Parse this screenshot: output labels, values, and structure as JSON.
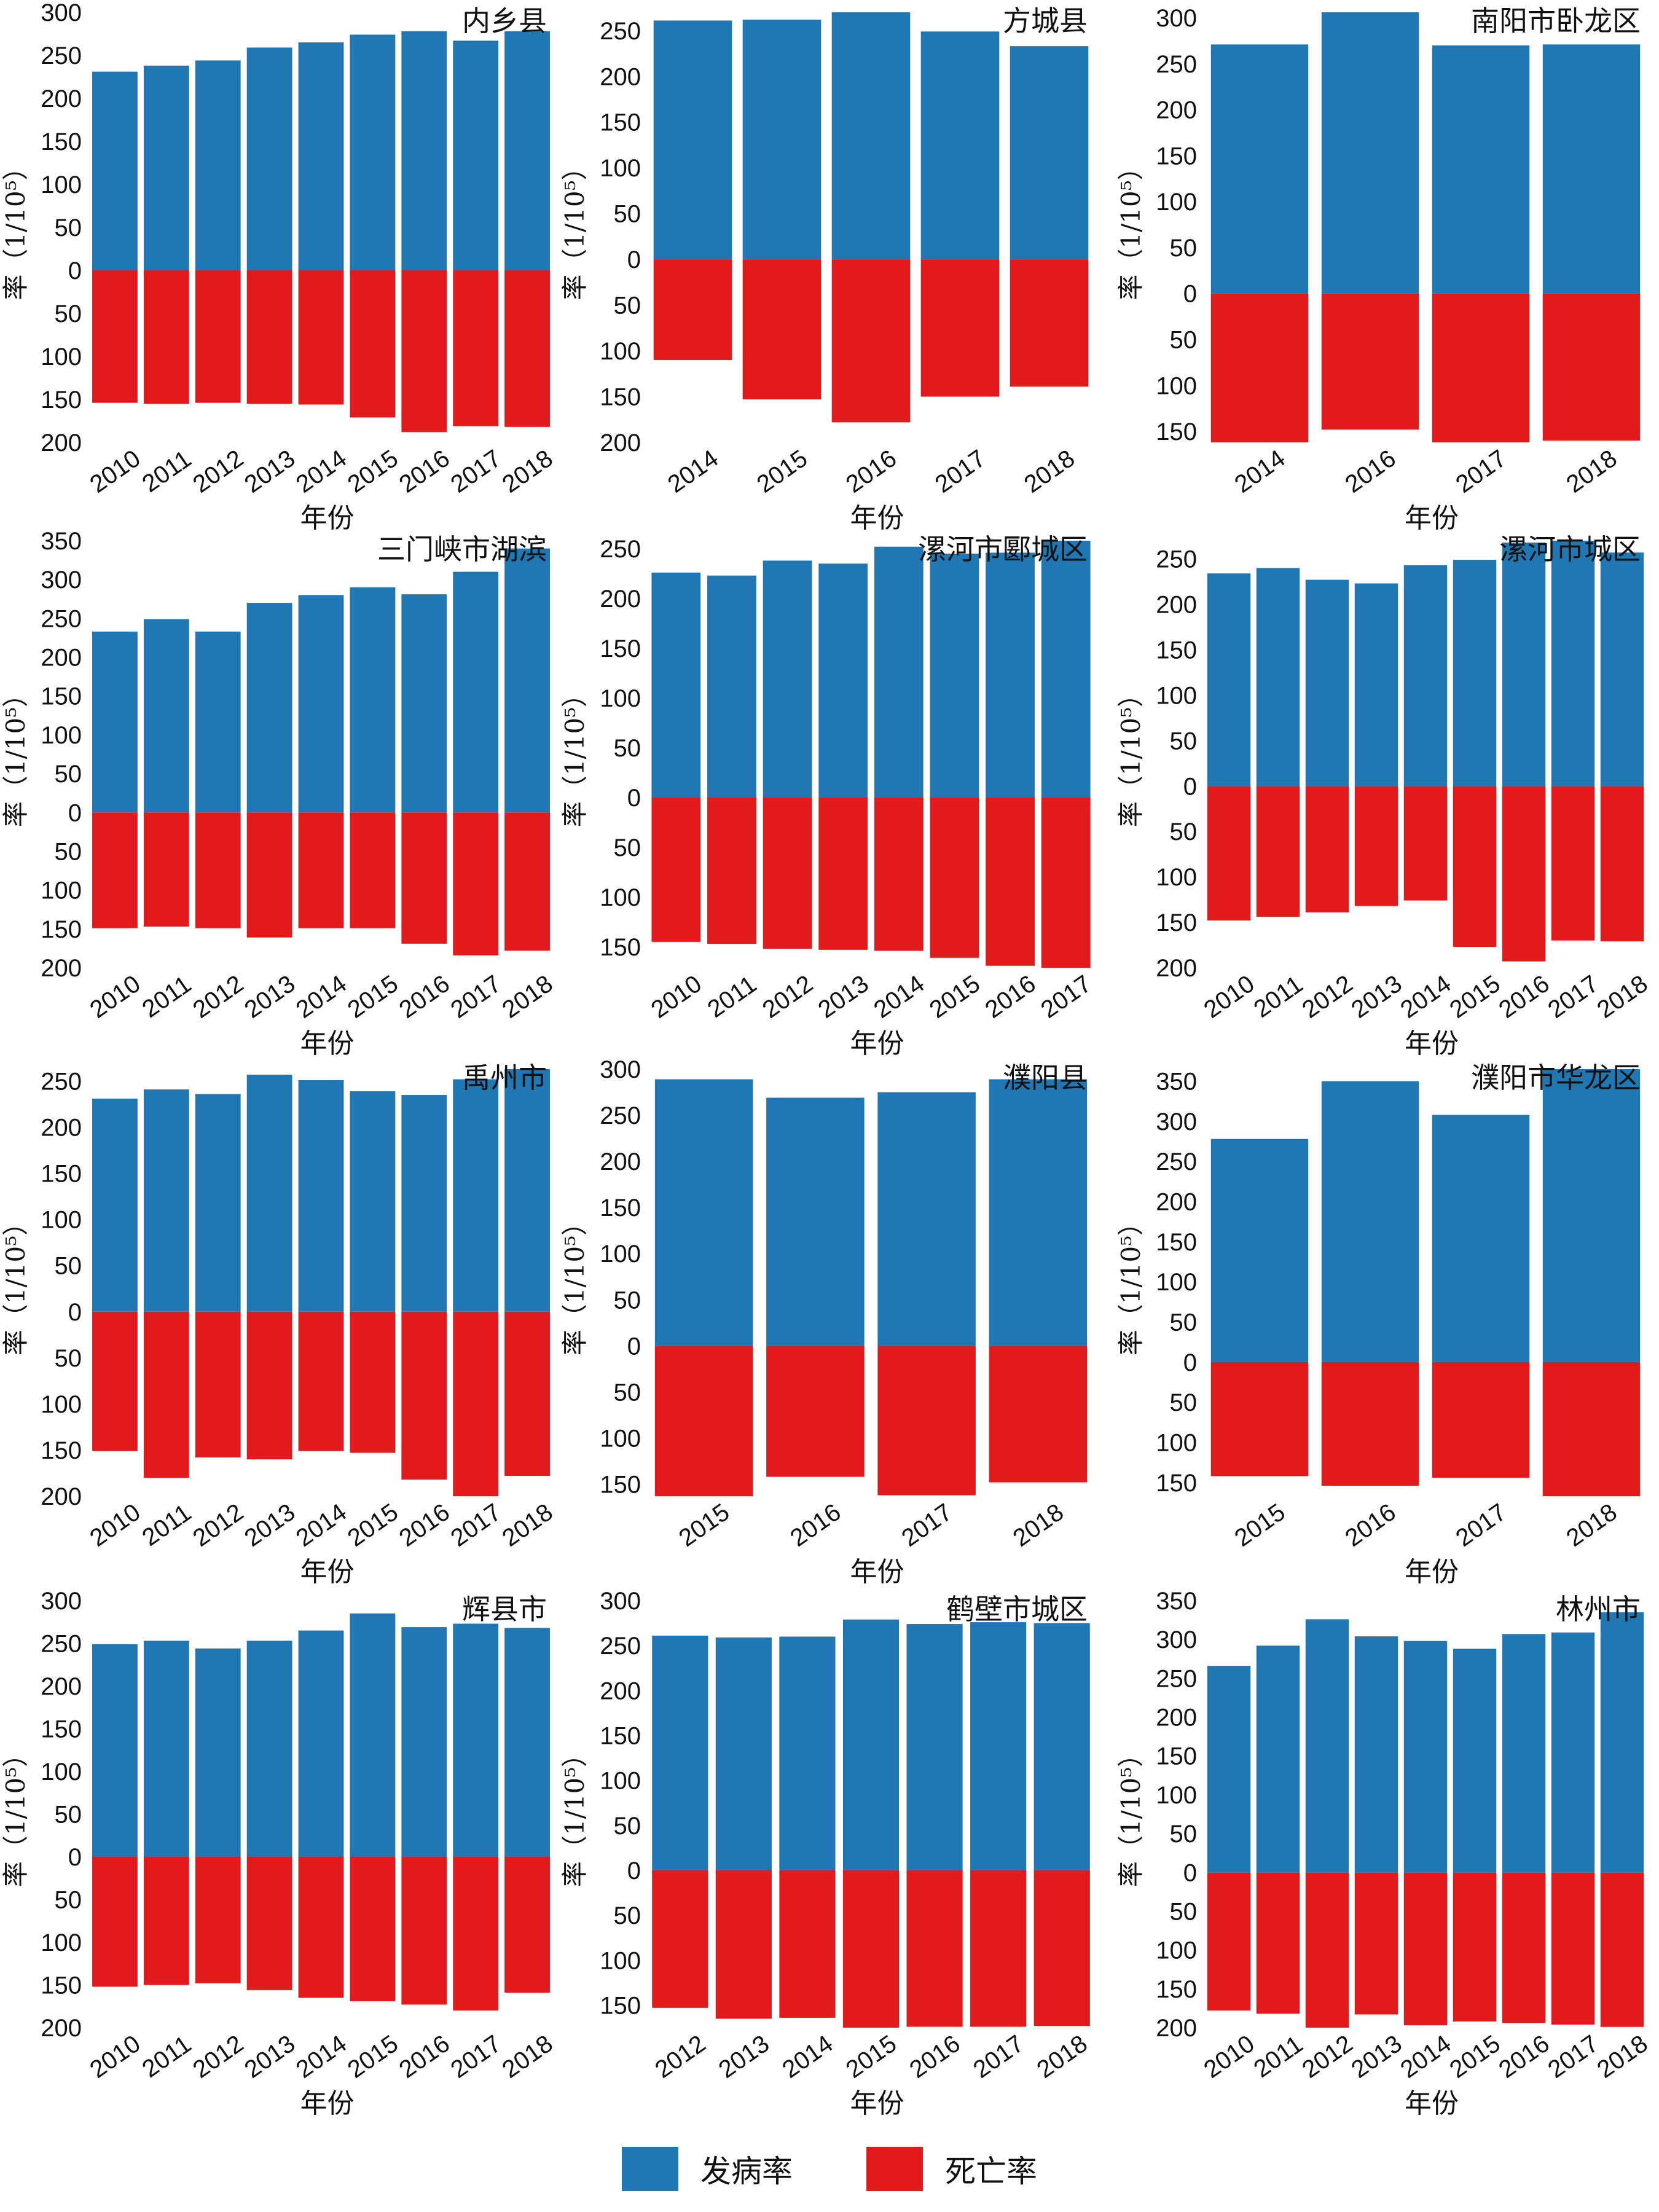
{
  "colors": {
    "incidence": "#1f77b4",
    "mortality": "#e31a1c"
  },
  "legend": [
    {
      "label": "发病率",
      "color": "#1f77b4"
    },
    {
      "label": "死亡率",
      "color": "#e31a1c"
    }
  ],
  "chart_data": [
    {
      "type": "bar",
      "title": "内乡县",
      "xlabel": "年份",
      "ylabel": "率（1/10⁵）",
      "categories": [
        "2010",
        "2011",
        "2012",
        "2013",
        "2014",
        "2015",
        "2016",
        "2017",
        "2018"
      ],
      "series": [
        {
          "name": "发病率",
          "values": [
            231,
            238,
            244,
            259,
            265,
            274,
            278,
            267,
            278
          ]
        },
        {
          "name": "死亡率",
          "values": [
            154,
            155,
            154,
            155,
            156,
            171,
            188,
            181,
            182
          ]
        }
      ],
      "y_upper_ticks": [
        0,
        50,
        100,
        150,
        200,
        250,
        300
      ],
      "y_lower_ticks": [
        0,
        50,
        100,
        150,
        200
      ],
      "ylim": [
        -200,
        300
      ]
    },
    {
      "type": "bar",
      "title": "方城县",
      "xlabel": "年份",
      "ylabel": "率（1/10⁵）",
      "categories": [
        "2014",
        "2015",
        "2016",
        "2017",
        "2018"
      ],
      "series": [
        {
          "name": "发病率",
          "values": [
            261,
            262,
            270,
            249,
            233
          ]
        },
        {
          "name": "死亡率",
          "values": [
            110,
            153,
            178,
            150,
            139
          ]
        }
      ],
      "y_upper_ticks": [
        0,
        50,
        100,
        150,
        200,
        250
      ],
      "y_lower_ticks": [
        0,
        50,
        100,
        150,
        200
      ],
      "ylim": [
        -200,
        270
      ]
    },
    {
      "type": "bar",
      "title": "南阳市卧龙区",
      "xlabel": "年份",
      "ylabel": "率（1/10⁵）",
      "categories": [
        "2014",
        "2016",
        "2017",
        "2018"
      ],
      "series": [
        {
          "name": "发病率",
          "values": [
            271,
            306,
            270,
            271
          ]
        },
        {
          "name": "死亡率",
          "values": [
            162,
            148,
            162,
            160
          ]
        }
      ],
      "y_upper_ticks": [
        0,
        50,
        100,
        150,
        200,
        250,
        300
      ],
      "y_lower_ticks": [
        0,
        50,
        100,
        150
      ],
      "ylim": [
        -162,
        306
      ]
    },
    {
      "type": "bar",
      "title": "三门峡市湖滨",
      "xlabel": "年份",
      "ylabel": "率（1/10⁵）",
      "categories": [
        "2010",
        "2011",
        "2012",
        "2013",
        "2014",
        "2015",
        "2016",
        "2017",
        "2018"
      ],
      "series": [
        {
          "name": "发病率",
          "values": [
            233,
            249,
            233,
            270,
            280,
            290,
            281,
            310,
            340
          ]
        },
        {
          "name": "死亡率",
          "values": [
            149,
            147,
            149,
            161,
            149,
            149,
            169,
            184,
            178
          ]
        }
      ],
      "y_upper_ticks": [
        0,
        50,
        100,
        150,
        200,
        250,
        300,
        350
      ],
      "y_lower_ticks": [
        0,
        50,
        100,
        150,
        200
      ],
      "ylim": [
        -200,
        350
      ]
    },
    {
      "type": "bar",
      "title": "漯河市郾城区",
      "xlabel": "年份",
      "ylabel": "率（1/10⁵）",
      "categories": [
        "2010",
        "2011",
        "2012",
        "2013",
        "2014",
        "2015",
        "2016",
        "2017"
      ],
      "series": [
        {
          "name": "发病率",
          "values": [
            226,
            223,
            238,
            235,
            252,
            245,
            246,
            258
          ]
        },
        {
          "name": "死亡率",
          "values": [
            145,
            147,
            152,
            153,
            154,
            161,
            169,
            171
          ]
        }
      ],
      "y_upper_ticks": [
        0,
        50,
        100,
        150,
        200,
        250
      ],
      "y_lower_ticks": [
        0,
        50,
        100,
        150
      ],
      "ylim": [
        -171,
        258
      ]
    },
    {
      "type": "bar",
      "title": "漯河市城区",
      "xlabel": "年份",
      "ylabel": "率（1/10⁵）",
      "categories": [
        "2010",
        "2011",
        "2012",
        "2013",
        "2014",
        "2015",
        "2016",
        "2017",
        "2018"
      ],
      "series": [
        {
          "name": "发病率",
          "values": [
            234,
            240,
            227,
            223,
            243,
            249,
            268,
            270,
            257
          ]
        },
        {
          "name": "死亡率",
          "values": [
            148,
            144,
            139,
            132,
            126,
            177,
            193,
            170,
            171
          ]
        }
      ],
      "y_upper_ticks": [
        0,
        50,
        100,
        150,
        200,
        250
      ],
      "y_lower_ticks": [
        0,
        50,
        100,
        150,
        200
      ],
      "ylim": [
        -200,
        270
      ]
    },
    {
      "type": "bar",
      "title": "禹州市",
      "xlabel": "年份",
      "ylabel": "率（1/10⁵）",
      "categories": [
        "2010",
        "2011",
        "2012",
        "2013",
        "2014",
        "2015",
        "2016",
        "2017",
        "2018"
      ],
      "series": [
        {
          "name": "发病率",
          "values": [
            231,
            241,
            236,
            257,
            251,
            239,
            235,
            252,
            263
          ]
        },
        {
          "name": "死亡率",
          "values": [
            151,
            180,
            158,
            160,
            151,
            153,
            182,
            200,
            178
          ]
        }
      ],
      "y_upper_ticks": [
        0,
        50,
        100,
        150,
        200,
        250
      ],
      "y_lower_ticks": [
        0,
        50,
        100,
        150,
        200
      ],
      "ylim": [
        -200,
        263
      ]
    },
    {
      "type": "bar",
      "title": "濮阳县",
      "xlabel": "年份",
      "ylabel": "率（1/10⁵）",
      "categories": [
        "2015",
        "2016",
        "2017",
        "2018"
      ],
      "series": [
        {
          "name": "发病率",
          "values": [
            289,
            269,
            275,
            289
          ]
        },
        {
          "name": "死亡率",
          "values": [
            163,
            142,
            162,
            148
          ]
        }
      ],
      "y_upper_ticks": [
        0,
        50,
        100,
        150,
        200,
        250,
        300
      ],
      "y_lower_ticks": [
        0,
        50,
        100,
        150
      ],
      "ylim": [
        -163,
        300
      ]
    },
    {
      "type": "bar",
      "title": "濮阳市华龙区",
      "xlabel": "年份",
      "ylabel": "率（1/10⁵）",
      "categories": [
        "2015",
        "2016",
        "2017",
        "2018"
      ],
      "series": [
        {
          "name": "发病率",
          "values": [
            278,
            350,
            308,
            365
          ]
        },
        {
          "name": "死亡率",
          "values": [
            142,
            154,
            144,
            167
          ]
        }
      ],
      "y_upper_ticks": [
        0,
        50,
        100,
        150,
        200,
        250,
        300,
        350
      ],
      "y_lower_ticks": [
        0,
        50,
        100,
        150
      ],
      "ylim": [
        -167,
        365
      ]
    },
    {
      "type": "bar",
      "title": "辉县市",
      "xlabel": "年份",
      "ylabel": "率（1/10⁵）",
      "categories": [
        "2010",
        "2011",
        "2012",
        "2013",
        "2014",
        "2015",
        "2016",
        "2017",
        "2018"
      ],
      "series": [
        {
          "name": "发病率",
          "values": [
            249,
            253,
            244,
            253,
            265,
            285,
            269,
            273,
            268
          ]
        },
        {
          "name": "死亡率",
          "values": [
            152,
            150,
            148,
            156,
            165,
            169,
            173,
            180,
            159
          ]
        }
      ],
      "y_upper_ticks": [
        0,
        50,
        100,
        150,
        200,
        250,
        300
      ],
      "y_lower_ticks": [
        0,
        50,
        100,
        150,
        200
      ],
      "ylim": [
        -200,
        300
      ]
    },
    {
      "type": "bar",
      "title": "鹤壁市城区",
      "xlabel": "年份",
      "ylabel": "率（1/10⁵）",
      "categories": [
        "2012",
        "2013",
        "2014",
        "2015",
        "2016",
        "2017",
        "2018"
      ],
      "series": [
        {
          "name": "发病率",
          "values": [
            261,
            259,
            260,
            279,
            274,
            276,
            275
          ]
        },
        {
          "name": "死亡率",
          "values": [
            153,
            165,
            164,
            175,
            174,
            174,
            173
          ]
        }
      ],
      "y_upper_ticks": [
        0,
        50,
        100,
        150,
        200,
        250,
        300
      ],
      "y_lower_ticks": [
        0,
        50,
        100,
        150
      ],
      "ylim": [
        -175,
        300
      ]
    },
    {
      "type": "bar",
      "title": "林州市",
      "xlabel": "年份",
      "ylabel": "率（1/10⁵）",
      "categories": [
        "2010",
        "2011",
        "2012",
        "2013",
        "2014",
        "2015",
        "2016",
        "2017",
        "2018"
      ],
      "series": [
        {
          "name": "发病率",
          "values": [
            266,
            292,
            326,
            304,
            298,
            288,
            307,
            309,
            335
          ]
        },
        {
          "name": "死亡率",
          "values": [
            178,
            182,
            200,
            183,
            197,
            192,
            194,
            196,
            199
          ]
        }
      ],
      "y_upper_ticks": [
        0,
        50,
        100,
        150,
        200,
        250,
        300,
        350
      ],
      "y_lower_ticks": [
        0,
        50,
        100,
        150,
        200
      ],
      "ylim": [
        -200,
        350
      ]
    }
  ]
}
